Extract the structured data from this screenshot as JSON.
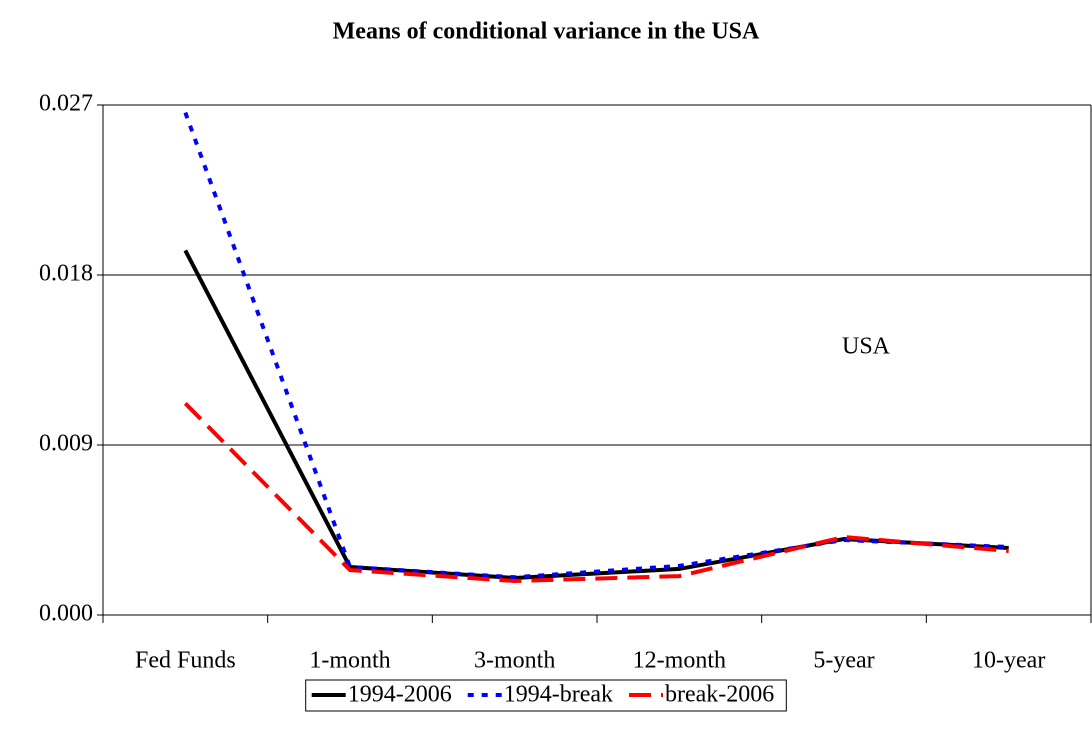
{
  "chart_data": {
    "type": "line",
    "title": "Means of conditional variance in the USA",
    "categories": [
      "Fed Funds",
      "1-month",
      "3-month",
      "12-month",
      "5-year",
      "10-year"
    ],
    "series": [
      {
        "name": "1994-2006",
        "color": "#000000",
        "style": "solid",
        "values": [
          0.0193,
          0.00254,
          0.00196,
          0.00244,
          0.00402,
          0.00355
        ]
      },
      {
        "name": "1994-break",
        "color": "#0000ff",
        "style": "dotted",
        "values": [
          0.0266,
          0.00254,
          0.002,
          0.0026,
          0.00397,
          0.0036
        ]
      },
      {
        "name": "break-2006",
        "color": "#ff0000",
        "style": "dashed",
        "values": [
          0.0112,
          0.00238,
          0.0018,
          0.00206,
          0.00413,
          0.00339
        ]
      }
    ],
    "ylim": [
      0,
      0.027
    ],
    "yticks": [
      {
        "value": 0,
        "label": "0.000"
      },
      {
        "value": 0.009,
        "label": "0.009"
      },
      {
        "value": 0.018,
        "label": "0.018"
      },
      {
        "value": 0.027,
        "label": "0.027"
      }
    ],
    "grid": true,
    "annotation": "USA",
    "legend": "bottom"
  }
}
